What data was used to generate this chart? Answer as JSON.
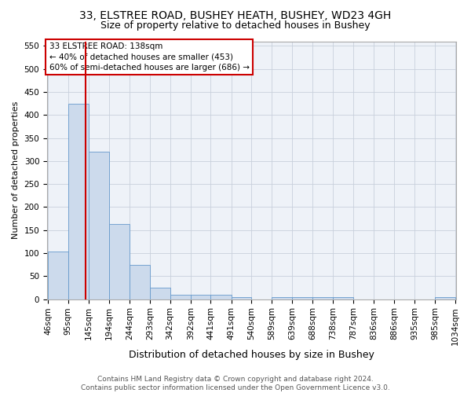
{
  "title1": "33, ELSTREE ROAD, BUSHEY HEATH, BUSHEY, WD23 4GH",
  "title2": "Size of property relative to detached houses in Bushey",
  "xlabel": "Distribution of detached houses by size in Bushey",
  "ylabel": "Number of detached properties",
  "bar_color": "#ccdaec",
  "bar_edge_color": "#6699cc",
  "bin_edges": [
    46,
    95,
    145,
    194,
    244,
    293,
    342,
    392,
    441,
    491,
    540,
    589,
    639,
    688,
    738,
    787,
    836,
    886,
    935,
    985,
    1034
  ],
  "bar_heights": [
    103,
    425,
    320,
    163,
    75,
    25,
    10,
    10,
    10,
    5,
    0,
    5,
    5,
    5,
    5,
    0,
    0,
    0,
    0,
    5
  ],
  "ylim": [
    0,
    560
  ],
  "yticks": [
    0,
    50,
    100,
    150,
    200,
    250,
    300,
    350,
    400,
    450,
    500,
    550
  ],
  "property_size": 138,
  "vline_color": "#cc0000",
  "annotation_line1": "33 ELSTREE ROAD: 138sqm",
  "annotation_line2": "← 40% of detached houses are smaller (453)",
  "annotation_line3": "60% of semi-detached houses are larger (686) →",
  "annotation_box_color": "#cc0000",
  "footer_text": "Contains HM Land Registry data © Crown copyright and database right 2024.\nContains public sector information licensed under the Open Government Licence v3.0.",
  "grid_color": "#c8d0dc",
  "background_color": "#eef2f8",
  "title1_fontsize": 10,
  "title2_fontsize": 9,
  "xlabel_fontsize": 9,
  "ylabel_fontsize": 8,
  "tick_labelsize": 7.5,
  "footer_fontsize": 6.5,
  "annotation_fontsize": 7.5
}
